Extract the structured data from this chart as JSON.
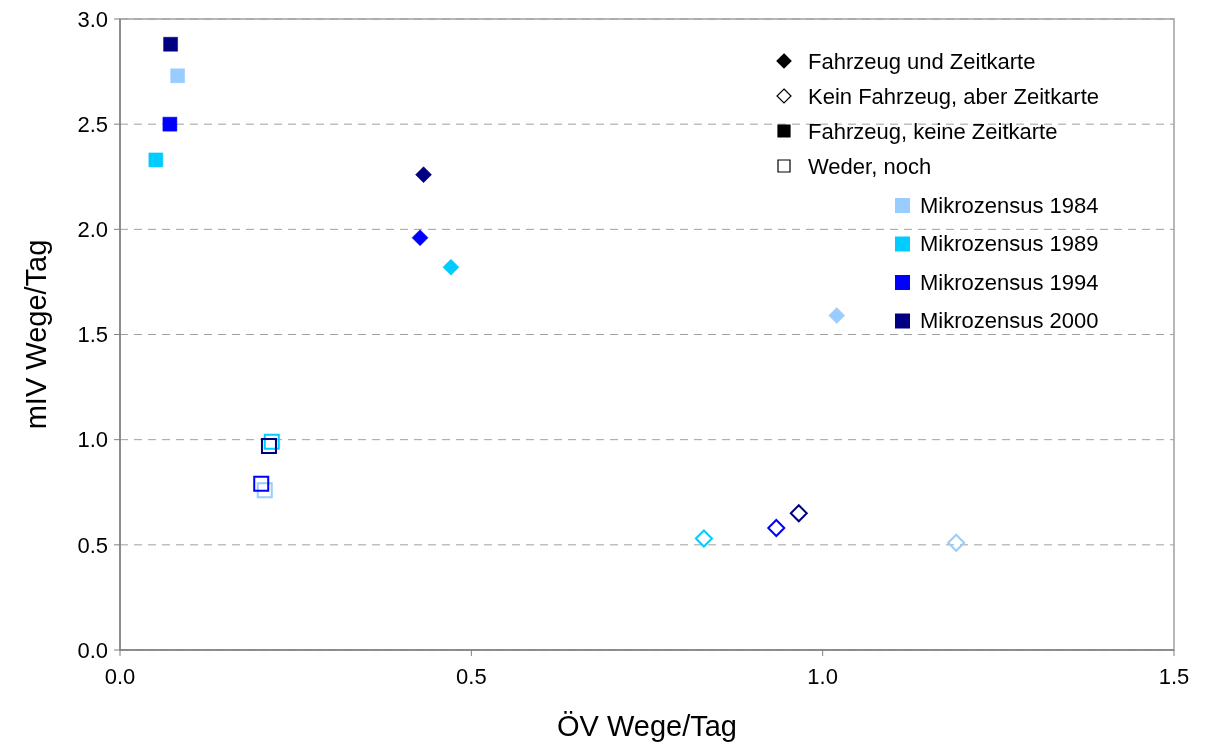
{
  "chart_data": {
    "type": "scatter",
    "xlabel": "ÖV Wege/Tag",
    "ylabel": "mIV Wege/Tag",
    "xlim": [
      0,
      1.5
    ],
    "ylim": [
      0,
      3
    ],
    "xticks": [
      {
        "value": 0,
        "label": "0.0"
      },
      0.5,
      {
        "value": 1,
        "label": "1.0"
      },
      1.5
    ],
    "yticks": [
      {
        "value": 0,
        "label": "0.0"
      },
      0.5,
      {
        "value": 1,
        "label": "1.0"
      },
      1.5,
      {
        "value": 2,
        "label": "2.0"
      },
      2.5,
      {
        "value": 3,
        "label": "3.0"
      }
    ],
    "grid": "y",
    "legend": "top right",
    "annotations": [
      "Fahrzeug und Zeitkarte",
      "Kein Fahrzeug, aber Zeitkarte",
      "Fahrzeug, keine Zeitkarte",
      "Weder, noch"
    ],
    "series": [
      {
        "name": "Mikrozensus 1984",
        "color": "#99ccff",
        "x": [
          1.02,
          1.19,
          0.082,
          0.206
        ],
        "values": [
          1.59,
          0.51,
          2.73,
          0.76
        ]
      },
      {
        "name": "Mikrozensus 1989",
        "color": "#00ccff",
        "x": [
          0.471,
          0.831,
          0.051,
          0.216
        ],
        "values": [
          1.82,
          0.53,
          2.33,
          0.99
        ]
      },
      {
        "name": "Mikrozensus 1994",
        "color": "#0000ff",
        "x": [
          0.427,
          0.934,
          0.071,
          0.201
        ],
        "values": [
          1.96,
          0.58,
          2.5,
          0.79
        ]
      },
      {
        "name": "Mikrozensus 2000",
        "color": "#000080",
        "x": [
          0.432,
          0.966,
          0.072,
          0.212
        ],
        "values": [
          2.26,
          0.65,
          2.88,
          0.97
        ]
      }
    ]
  }
}
